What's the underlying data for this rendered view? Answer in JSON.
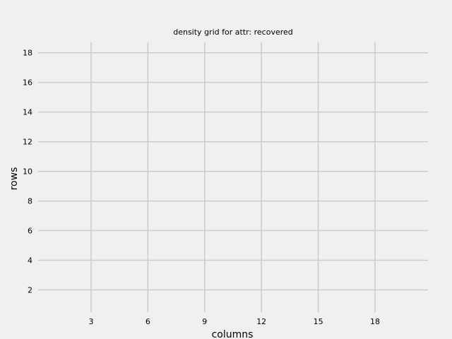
{
  "chart_data": {
    "type": "heatmap",
    "title": "density grid for attr: recovered",
    "xlabel": "columns",
    "ylabel": "rows",
    "xlim": [
      0.2,
      20.8
    ],
    "ylim": [
      0.5,
      18.7
    ],
    "x_ticks": [
      3,
      6,
      9,
      12,
      15,
      18
    ],
    "y_ticks": [
      2,
      4,
      6,
      8,
      10,
      12,
      14,
      16,
      18
    ],
    "grid": true,
    "legend": "none",
    "values": []
  },
  "colors": {
    "background": "#f0f0f0",
    "grid": "#cbcbcb",
    "text": "#000000"
  }
}
